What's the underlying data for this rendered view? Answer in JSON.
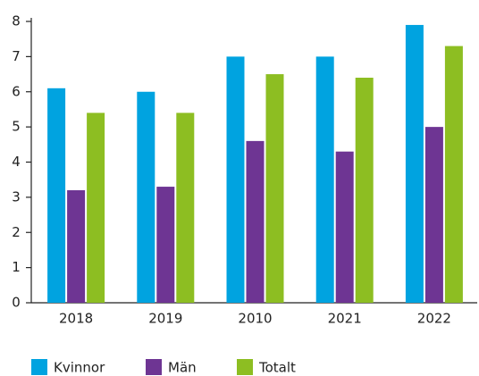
{
  "chart_data": {
    "type": "bar",
    "categories": [
      "2018",
      "2019",
      "2010",
      "2021",
      "2022"
    ],
    "series": [
      {
        "name": "Kvinnor",
        "color": "#00a3e0",
        "values": [
          6.1,
          6.0,
          7.0,
          7.0,
          7.9
        ]
      },
      {
        "name": "Män",
        "color": "#6e3593",
        "values": [
          3.2,
          3.3,
          4.6,
          4.3,
          5.0
        ]
      },
      {
        "name": "Totalt",
        "color": "#8dbe22",
        "values": [
          5.4,
          5.4,
          6.5,
          6.4,
          7.3
        ]
      }
    ],
    "ylim": [
      0,
      8
    ],
    "yticks": [
      0,
      1,
      2,
      3,
      4,
      5,
      6,
      7,
      8
    ],
    "grid": false,
    "legend": "bottom"
  }
}
